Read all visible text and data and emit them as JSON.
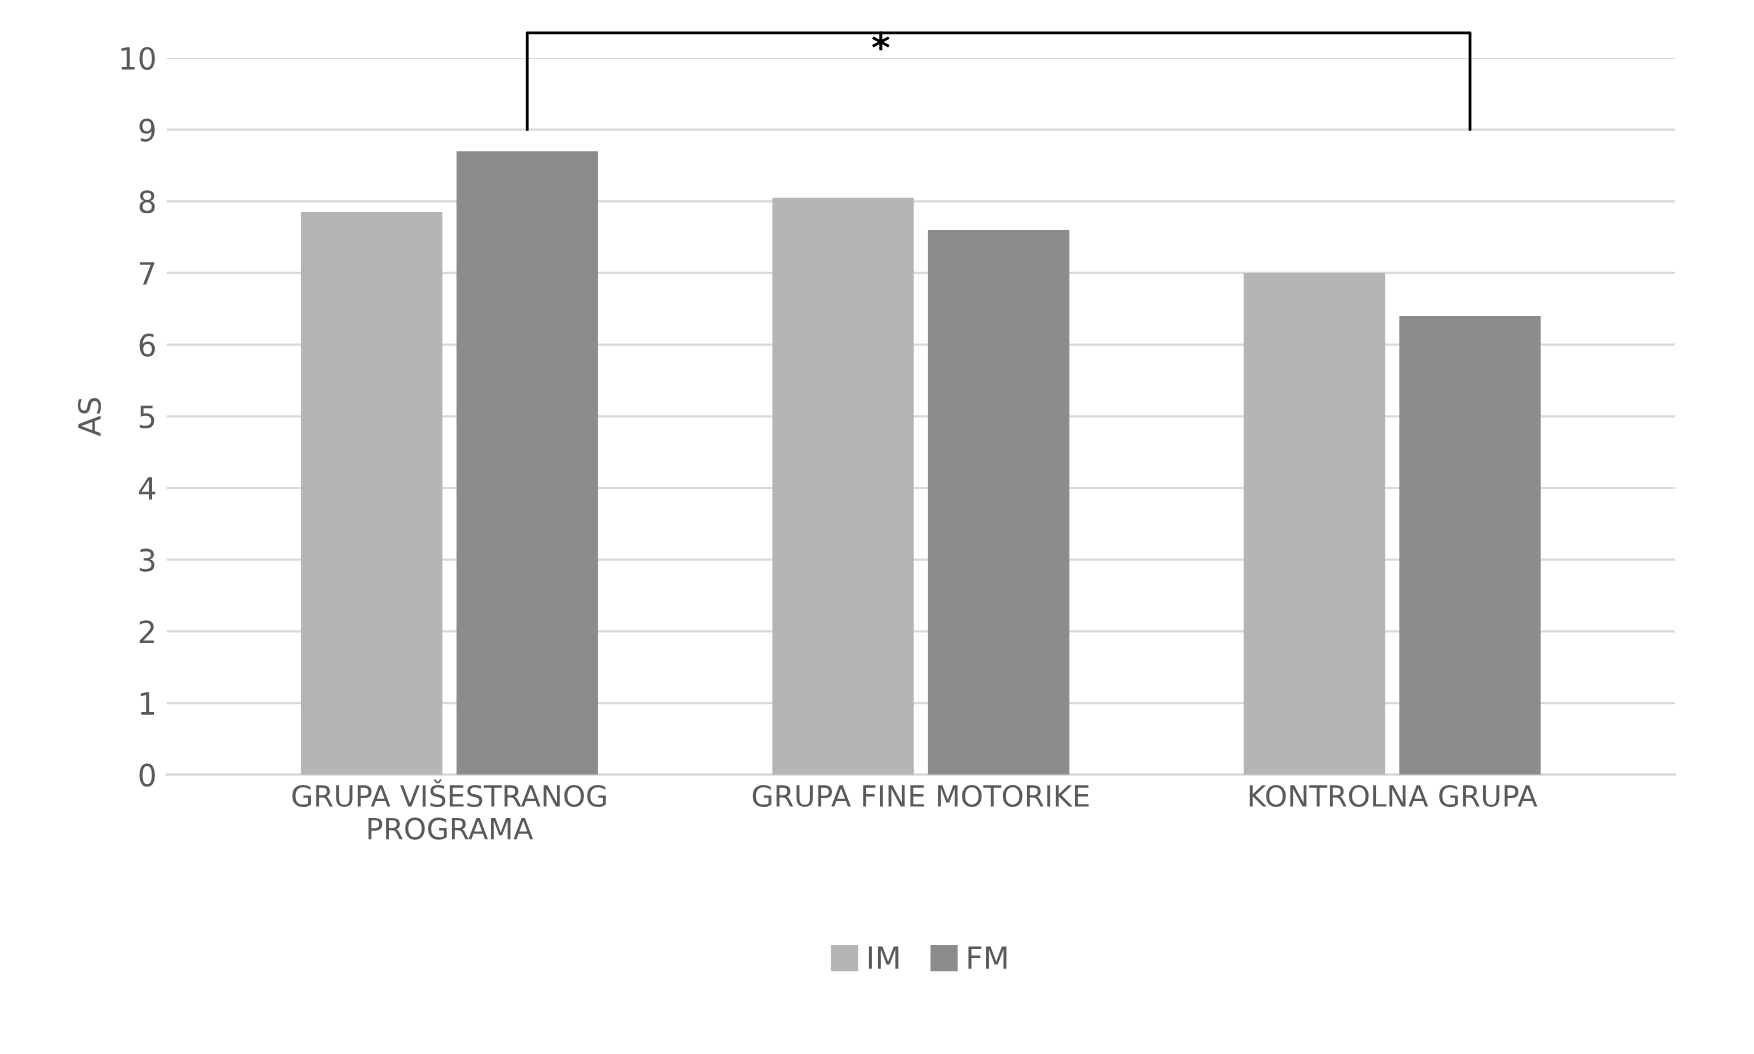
{
  "chart_data": {
    "type": "bar",
    "ylabel": "AS",
    "categories": [
      "GRUPA VIŠESTRANOG\nPROGRAMA",
      "GRUPA FINE MOTORIKE",
      "KONTROLNA GRUPA"
    ],
    "series": [
      {
        "name": "IM",
        "color": "#b5b5b5",
        "values": [
          7.85,
          8.05,
          7.0
        ]
      },
      {
        "name": "FM",
        "color": "#8c8c8c",
        "values": [
          8.7,
          7.6,
          6.4
        ]
      }
    ],
    "ylim": [
      0,
      10
    ],
    "yticks": [
      0,
      1,
      2,
      3,
      4,
      5,
      6,
      7,
      8,
      9,
      10
    ],
    "grid": "y",
    "legend": "bottom",
    "annotations": [
      "*"
    ]
  }
}
